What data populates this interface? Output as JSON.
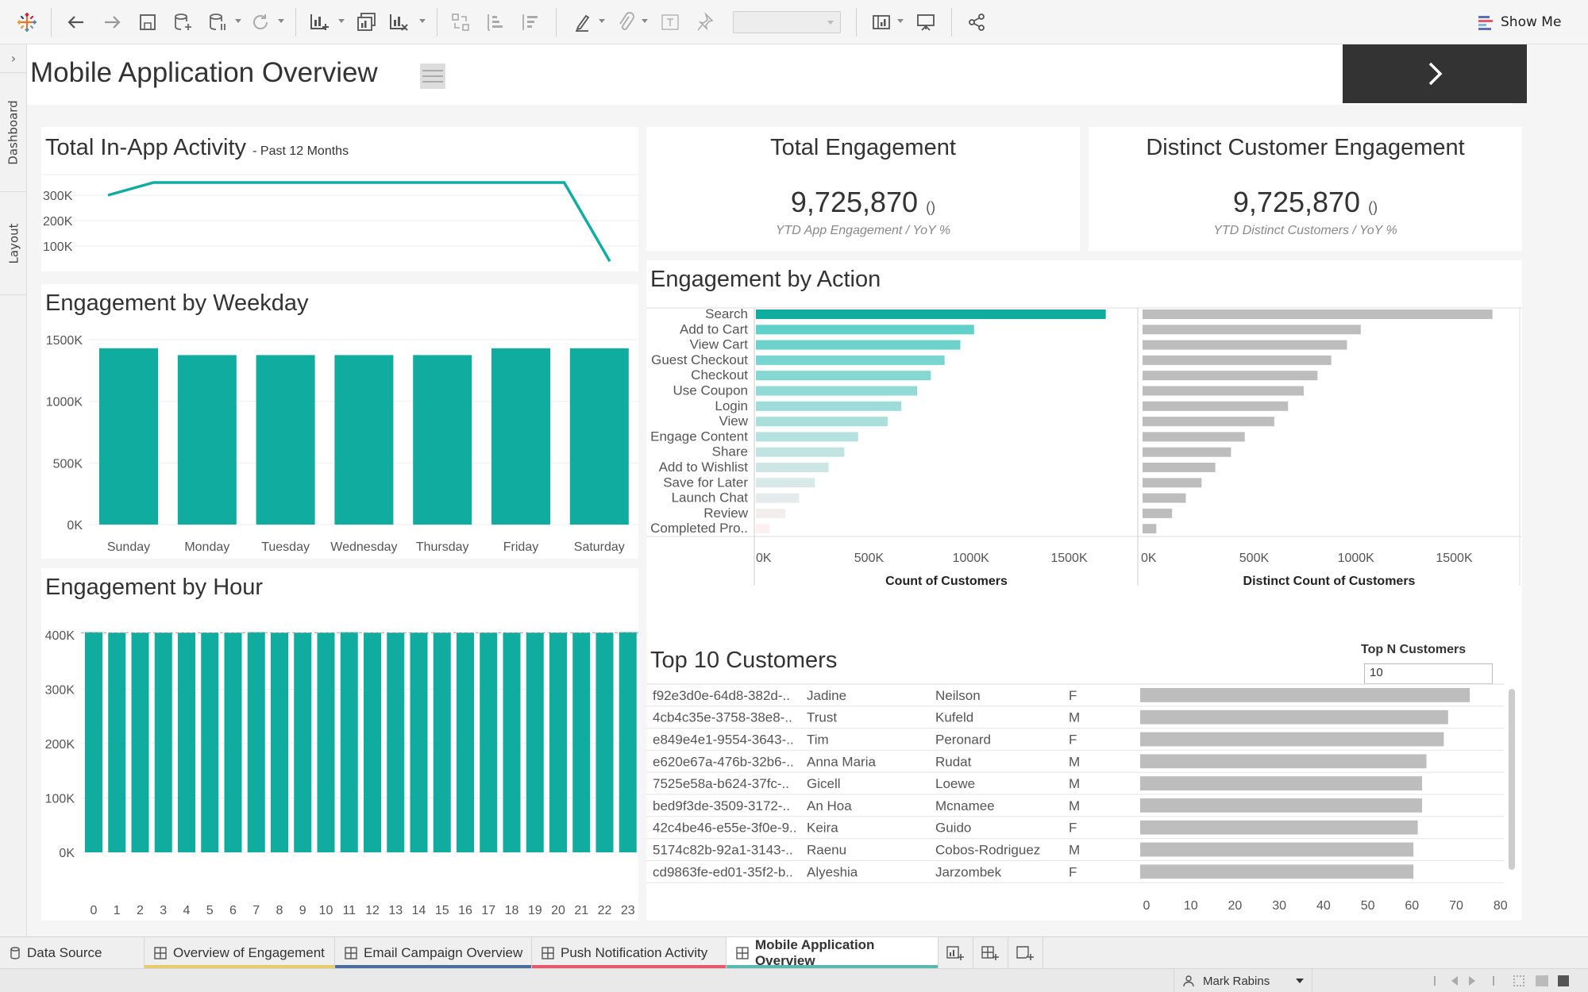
{
  "toolbar": {
    "show_me_label": "Show Me",
    "icons": [
      "tableau-logo-icon",
      "undo-icon",
      "redo-icon",
      "save-icon",
      "new-data-source-icon",
      "pause-updates-icon",
      "refresh-icon",
      "new-worksheet-icon",
      "duplicate-sheet-icon",
      "clear-sheet-icon",
      "swap-icon",
      "sort-ascending-icon",
      "sort-descending-icon",
      "highlight-icon",
      "group-icon",
      "label-icon",
      "pin-icon",
      "fit-dropdown",
      "show-cards-icon",
      "presentation-icon",
      "share-icon"
    ]
  },
  "siderail": {
    "tabs": [
      "Dashboard",
      "Layout"
    ]
  },
  "header": {
    "title": "Mobile Application Overview"
  },
  "activity": {
    "title": "Total In-App Activity",
    "subtitle": "- Past 12 Months",
    "y_ticks": [
      "300K",
      "200K",
      "100K"
    ]
  },
  "kpi_total": {
    "title": "Total Engagement",
    "value": "9,725,870",
    "yoy": "()",
    "sub": "YTD App Engagement  / YoY %"
  },
  "kpi_distinct": {
    "title": "Distinct Customer Engagement",
    "value": "9,725,870",
    "yoy": "()",
    "sub": "YTD Distinct Customers  / YoY %"
  },
  "weekday": {
    "title": "Engagement by Weekday"
  },
  "hour": {
    "title": "Engagement by Hour"
  },
  "action": {
    "title": "Engagement by Action",
    "xlabel_left": "Count of Customers",
    "xlabel_right": "Distinct Count of Customers"
  },
  "top10": {
    "title": "Top 10 Customers",
    "topn_label": "Top N Customers",
    "topn_value": "10",
    "rows": [
      [
        "f92e3d0e-64d8-382d-..",
        "Jadine",
        "Neilson",
        "F"
      ],
      [
        "4cb4c35e-3758-38e8-..",
        "Trust",
        "Kufeld",
        "M"
      ],
      [
        "e849e4e1-9554-3643-..",
        "Tim",
        "Peronard",
        "F"
      ],
      [
        "e620e67a-476b-32b6-..",
        "Anna Maria",
        "Rudat",
        "M"
      ],
      [
        "7525e58a-b624-37fc-..",
        "Gicell",
        "Loewe",
        "M"
      ],
      [
        "bed9f3de-3509-3172-..",
        "An Hoa",
        "Mcnamee",
        "M"
      ],
      [
        "42c4be46-e55e-3f0e-9..",
        "Keira",
        "Guido",
        "F"
      ],
      [
        "5174c82b-92a1-3143-..",
        "Raenu",
        "Cobos-Rodriguez",
        "M"
      ],
      [
        "cd9863fe-ed01-35f2-b..",
        "Alyeshia",
        "Jarzombek",
        "F"
      ]
    ]
  },
  "sheet_tabs": [
    {
      "label": "Data Source",
      "icon": "database-icon",
      "color": ""
    },
    {
      "label": "Overview of Engagement",
      "icon": "dashboard-icon",
      "color": "#e8c96b"
    },
    {
      "label": "Email Campaign Overview",
      "icon": "dashboard-icon",
      "color": "#4a6f9c"
    },
    {
      "label": "Push Notification Activity",
      "icon": "dashboard-icon",
      "color": "#e8586b"
    },
    {
      "label": "Mobile Application Overview",
      "icon": "dashboard-icon",
      "color": "#5bb8b0",
      "active": true
    }
  ],
  "status": {
    "user": "Mark Rabins"
  },
  "colors": {
    "teal": "#10aca0",
    "gray_bar": "#bdbdbd",
    "header_button": "#333333"
  },
  "chart_data": [
    {
      "type": "line",
      "title": "Total In-App Activity",
      "subtitle": "- Past 12 Months",
      "x": [
        1,
        2,
        3,
        4,
        5,
        6,
        7,
        8,
        9,
        10,
        11,
        12
      ],
      "values": [
        300000,
        350000,
        350000,
        350000,
        350000,
        350000,
        350000,
        350000,
        350000,
        350000,
        350000,
        40000
      ],
      "ylim": [
        0,
        400000
      ],
      "yticks": [
        "100K",
        "200K",
        "300K"
      ],
      "grid": true
    },
    {
      "type": "bar",
      "title": "Engagement by Weekday",
      "categories": [
        "Sunday",
        "Monday",
        "Tuesday",
        "Wednesday",
        "Thursday",
        "Friday",
        "Saturday"
      ],
      "values": [
        1430000,
        1375000,
        1375000,
        1375000,
        1375000,
        1430000,
        1430000
      ],
      "ylim": [
        0,
        1500000
      ],
      "yticks": [
        "0K",
        "500K",
        "1000K",
        "1500K"
      ],
      "grid": true
    },
    {
      "type": "bar",
      "title": "Engagement by Hour",
      "categories": [
        "0",
        "1",
        "2",
        "3",
        "4",
        "5",
        "6",
        "7",
        "8",
        "9",
        "10",
        "11",
        "12",
        "13",
        "14",
        "15",
        "16",
        "17",
        "18",
        "19",
        "20",
        "21",
        "22",
        "23"
      ],
      "values": [
        405000,
        404000,
        404000,
        404000,
        404000,
        404000,
        404000,
        405000,
        404000,
        404000,
        404000,
        405000,
        404000,
        404000,
        404000,
        404000,
        404000,
        404000,
        404000,
        404000,
        404000,
        404000,
        404000,
        405000
      ],
      "ylim": [
        0,
        400000
      ],
      "yticks": [
        "0K",
        "100K",
        "200K",
        "300K",
        "400K"
      ],
      "reference_line": 404000,
      "grid": true
    },
    {
      "type": "bar",
      "orientation": "horizontal",
      "title": "Engagement by Action",
      "categories": [
        "Search",
        "Add to Cart",
        "View Cart",
        "Guest Checkout",
        "Checkout",
        "Use Coupon",
        "Login",
        "View",
        "Engage Content",
        "Share",
        "Add to Wishlist",
        "Save for Later",
        "Launch Chat",
        "Review",
        "Completed Pro.."
      ],
      "series": [
        {
          "name": "Count of Customers",
          "values": [
            1780000,
            1110000,
            1040000,
            960000,
            890000,
            820000,
            740000,
            670000,
            520000,
            450000,
            370000,
            300000,
            220000,
            150000,
            70000
          ]
        },
        {
          "name": "Distinct Count of Customers",
          "values": [
            1780000,
            1110000,
            1040000,
            960000,
            890000,
            820000,
            740000,
            670000,
            520000,
            450000,
            370000,
            300000,
            220000,
            150000,
            70000
          ]
        }
      ],
      "xticks": [
        "0K",
        "500K",
        "1000K",
        "1500K"
      ],
      "xlim": [
        0,
        1850000
      ]
    },
    {
      "type": "bar",
      "orientation": "horizontal",
      "title": "Top 10 Customers",
      "categories": [
        "f92e3d0e-64d8-382d-..",
        "4cb4c35e-3758-38e8-..",
        "e849e4e1-9554-3643-..",
        "e620e67a-476b-32b6-..",
        "7525e58a-b624-37fc-..",
        "bed9f3de-3509-3172-..",
        "42c4be46-e55e-3f0e-9..",
        "5174c82b-92a1-3143-..",
        "cd9863fe-ed01-35f2-b.."
      ],
      "values": [
        76,
        71,
        70,
        66,
        65,
        65,
        64,
        63,
        63
      ],
      "xlim": [
        0,
        80
      ],
      "xticks": [
        "0",
        "10",
        "20",
        "30",
        "40",
        "50",
        "60",
        "70",
        "80"
      ]
    }
  ]
}
